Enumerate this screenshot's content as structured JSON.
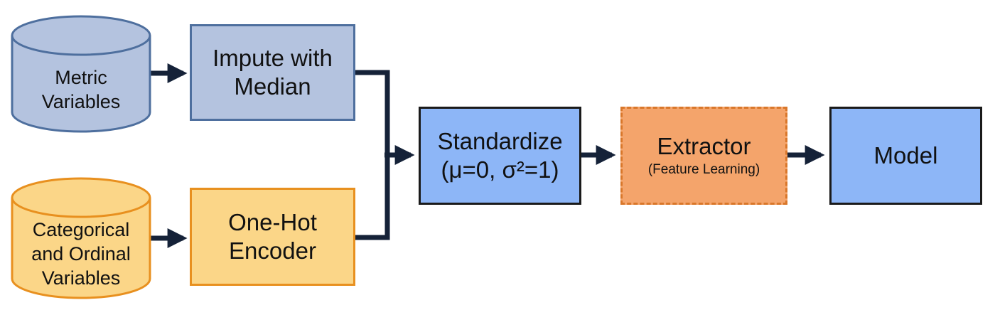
{
  "nodes": {
    "metric_variables": {
      "lines": [
        "Metric",
        "Variables"
      ]
    },
    "categorical_variables": {
      "lines": [
        "Categorical",
        "and Ordinal",
        "Variables"
      ]
    },
    "impute": {
      "lines": [
        "Impute with",
        "Median"
      ]
    },
    "one_hot": {
      "lines": [
        "One-Hot",
        "Encoder"
      ]
    },
    "standardize": {
      "lines": [
        "Standardize",
        "(μ=0, σ²=1)"
      ]
    },
    "extractor": {
      "title": "Extractor",
      "subtitle": "(Feature Learning)"
    },
    "model": {
      "title": "Model"
    }
  },
  "colors": {
    "metric_fill": "#b4c3df",
    "metric_stroke": "#4e6f9e",
    "impute_fill": "#b4c3df",
    "impute_stroke": "#4e6f9e",
    "categorical_fill": "#fbd688",
    "categorical_stroke": "#e8901f",
    "onehot_fill": "#fbd688",
    "onehot_stroke": "#e8901f",
    "standardize_fill": "#8db6f7",
    "extractor_fill": "#f4a46b",
    "extractor_stroke": "#d9772a",
    "model_fill": "#8db6f7",
    "arrow": "#152238"
  },
  "edges": [
    {
      "from": "metric_variables",
      "to": "impute"
    },
    {
      "from": "categorical_variables",
      "to": "one_hot"
    },
    {
      "from": "impute",
      "to": "standardize"
    },
    {
      "from": "one_hot",
      "to": "standardize"
    },
    {
      "from": "standardize",
      "to": "extractor"
    },
    {
      "from": "extractor",
      "to": "model"
    }
  ]
}
